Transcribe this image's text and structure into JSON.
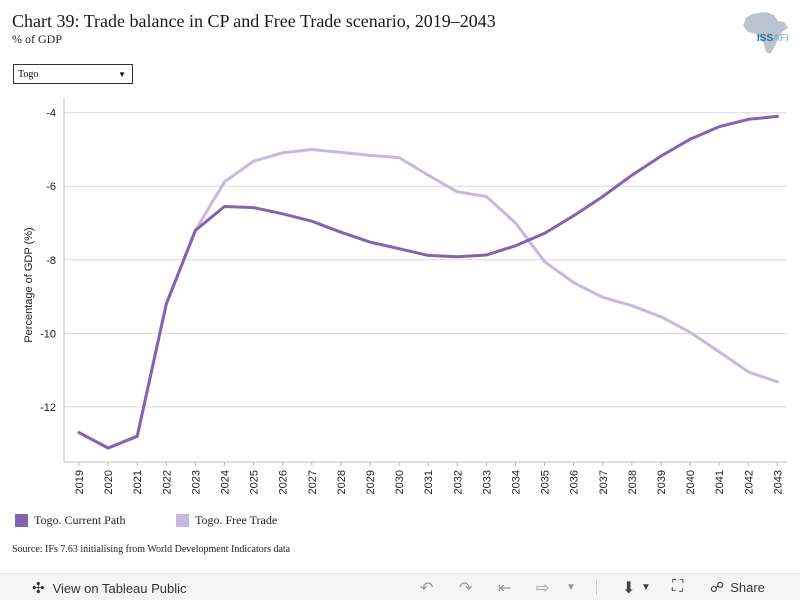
{
  "header": {
    "title": "Chart 39: Trade balance in CP and Free Trade scenario, 2019–2043",
    "subtitle": "% of GDP"
  },
  "logo": {
    "text_main": "ISS",
    "text_sub": "AFI"
  },
  "filter": {
    "selected": "Togo"
  },
  "chart_data": {
    "type": "line",
    "x": [
      2019,
      2020,
      2021,
      2022,
      2023,
      2024,
      2025,
      2026,
      2027,
      2028,
      2029,
      2030,
      2031,
      2032,
      2033,
      2034,
      2035,
      2036,
      2037,
      2038,
      2039,
      2040,
      2041,
      2042,
      2043
    ],
    "x_tick_labels": [
      "2019",
      "2020",
      "2021",
      "2022",
      "2023",
      "2024",
      "2025",
      "2026",
      "2027",
      "2028",
      "2029",
      "2030",
      "2031",
      "2032",
      "2033",
      "2034",
      "2035",
      "2036",
      "2037",
      "2038",
      "2039",
      "2040",
      "2041",
      "2042",
      "2043"
    ],
    "ylabel": "Percentage of GDP (%)",
    "y_ticks": [
      -4,
      -6,
      -8,
      -10,
      -12
    ],
    "y_tick_labels": [
      "-4",
      "-6",
      "-8",
      "-10",
      "-12"
    ],
    "ylim": [
      -13.5,
      -3.6
    ],
    "grid": true,
    "legend_position": "bottom-left",
    "series": [
      {
        "name": "Togo. Current Path",
        "color": "#8463b0",
        "values": [
          -12.7,
          -13.12,
          -12.8,
          -9.2,
          -7.2,
          -6.55,
          -6.58,
          -6.75,
          -6.95,
          -7.25,
          -7.52,
          -7.7,
          -7.88,
          -7.92,
          -7.87,
          -7.62,
          -7.28,
          -6.8,
          -6.28,
          -5.7,
          -5.18,
          -4.72,
          -4.38,
          -4.18,
          -4.1
        ]
      },
      {
        "name": "Togo. Free Trade",
        "color": "#c7b8dc",
        "values": [
          -12.7,
          -13.12,
          -12.8,
          -9.2,
          -7.2,
          -5.88,
          -5.32,
          -5.09,
          -5.0,
          -5.08,
          -5.16,
          -5.22,
          -5.7,
          -6.15,
          -6.28,
          -7.0,
          -8.05,
          -8.62,
          -9.02,
          -9.25,
          -9.55,
          -9.97,
          -10.5,
          -11.05,
          -11.32
        ]
      }
    ]
  },
  "source": "Source: IFs 7.63 initialising from World Development Indicators data",
  "footer": {
    "view_label": "View on Tableau Public",
    "share_label": "Share"
  }
}
